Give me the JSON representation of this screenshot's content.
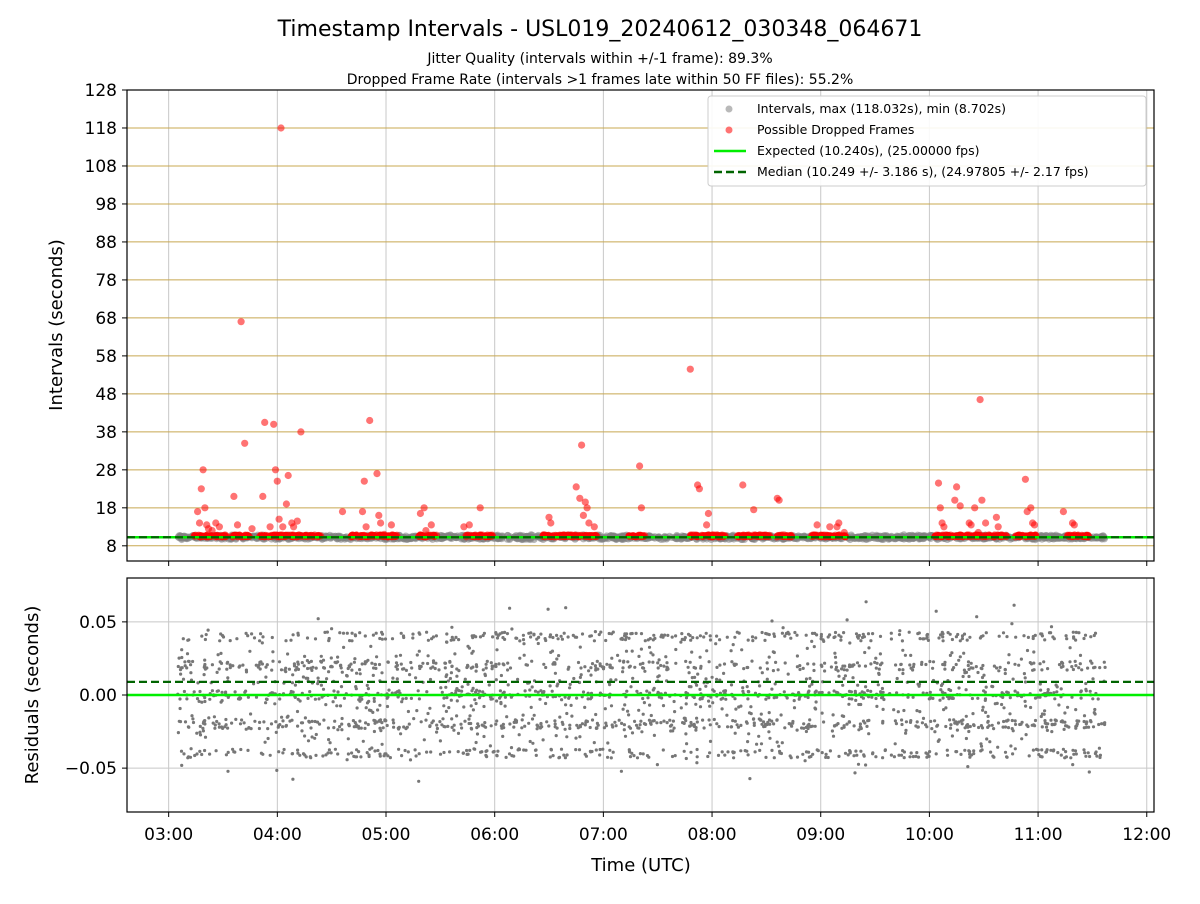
{
  "title": "Timestamp Intervals - USL019_20240612_030348_064671",
  "subtitle_1": "Jitter Quality (intervals within +/-1 frame): 89.3%",
  "subtitle_2": "Dropped Frame Rate (intervals >1 frames late within 50 FF files): 55.2%",
  "colors": {
    "intervals": "#808080",
    "dropped": "#ff0000",
    "expected": "#00ee00",
    "median": "#006400",
    "hgrid": "#c8a850",
    "vgrid": "#c8c8c8",
    "residuals": "#777777"
  },
  "chart_data": [
    {
      "type": "scatter",
      "panel": "top",
      "ylabel": "Intervals (seconds)",
      "xlabel": "",
      "ylim": [
        4,
        128
      ],
      "yticks": [
        8,
        18,
        28,
        38,
        48,
        58,
        68,
        78,
        88,
        98,
        108,
        118,
        128
      ],
      "xlim": [
        "02:37",
        "12:04"
      ],
      "xticks": [
        "03:00",
        "04:00",
        "05:00",
        "06:00",
        "07:00",
        "08:00",
        "09:00",
        "10:00",
        "11:00",
        "12:00"
      ],
      "grid": "on",
      "legend_position": "top-right",
      "legend": [
        "Intervals, max (118.032s), min (8.702s)",
        "Possible Dropped Frames",
        "Expected (10.240s), (25.00000 fps)",
        "Median (10.249 +/- 3.186 s), (24.97805 +/- 2.17 fps)"
      ],
      "expected_line": 10.24,
      "median_line": 10.249,
      "intervals_range": [
        "03:05",
        "11:37"
      ],
      "dropped_points": [
        [
          "03:16",
          17.0
        ],
        [
          "03:17",
          14.0
        ],
        [
          "03:18",
          23.0
        ],
        [
          "03:19",
          28.0
        ],
        [
          "03:20",
          18.0
        ],
        [
          "03:21",
          13.5
        ],
        [
          "03:22",
          12.5
        ],
        [
          "03:24",
          12.0
        ],
        [
          "03:26",
          14.0
        ],
        [
          "03:28",
          13.0
        ],
        [
          "03:36",
          21.0
        ],
        [
          "03:38",
          13.5
        ],
        [
          "03:40",
          67.0
        ],
        [
          "03:42",
          35.0
        ],
        [
          "03:46",
          12.5
        ],
        [
          "03:52",
          21.0
        ],
        [
          "03:53",
          40.5
        ],
        [
          "03:56",
          13.0
        ],
        [
          "03:58",
          40.0
        ],
        [
          "03:59",
          28.0
        ],
        [
          "04:00",
          25.0
        ],
        [
          "04:01",
          15.0
        ],
        [
          "04:02",
          118.0
        ],
        [
          "04:03",
          13.0
        ],
        [
          "04:05",
          19.0
        ],
        [
          "04:06",
          26.5
        ],
        [
          "04:08",
          14.0
        ],
        [
          "04:09",
          13.0
        ],
        [
          "04:11",
          14.5
        ],
        [
          "04:13",
          38.0
        ],
        [
          "04:36",
          17.0
        ],
        [
          "04:47",
          17.0
        ],
        [
          "04:48",
          25.0
        ],
        [
          "04:49",
          13.0
        ],
        [
          "04:51",
          41.0
        ],
        [
          "04:55",
          27.0
        ],
        [
          "04:56",
          16.0
        ],
        [
          "04:57",
          14.0
        ],
        [
          "04:59",
          11.0
        ],
        [
          "05:03",
          13.5
        ],
        [
          "05:19",
          16.5
        ],
        [
          "05:21",
          18.0
        ],
        [
          "05:22",
          12.0
        ],
        [
          "05:25",
          13.5
        ],
        [
          "05:43",
          13.0
        ],
        [
          "05:46",
          13.5
        ],
        [
          "05:52",
          18.0
        ],
        [
          "06:30",
          15.5
        ],
        [
          "06:31",
          14.0
        ],
        [
          "06:45",
          23.5
        ],
        [
          "06:47",
          20.5
        ],
        [
          "06:48",
          34.5
        ],
        [
          "06:49",
          16.0
        ],
        [
          "06:50",
          19.5
        ],
        [
          "06:51",
          18.0
        ],
        [
          "06:52",
          14.0
        ],
        [
          "06:55",
          13.0
        ],
        [
          "07:20",
          29.0
        ],
        [
          "07:21",
          18.0
        ],
        [
          "07:48",
          54.5
        ],
        [
          "07:52",
          24.0
        ],
        [
          "07:53",
          23.0
        ],
        [
          "07:57",
          13.5
        ],
        [
          "07:58",
          16.5
        ],
        [
          "08:17",
          24.0
        ],
        [
          "08:23",
          17.5
        ],
        [
          "08:36",
          20.5
        ],
        [
          "08:37",
          20.0
        ],
        [
          "08:58",
          13.5
        ],
        [
          "09:05",
          13.0
        ],
        [
          "09:09",
          13.0
        ],
        [
          "09:10",
          14.0
        ],
        [
          "09:13",
          11.5
        ],
        [
          "10:05",
          24.5
        ],
        [
          "10:06",
          18.0
        ],
        [
          "10:07",
          14.0
        ],
        [
          "10:08",
          13.0
        ],
        [
          "10:14",
          20.0
        ],
        [
          "10:15",
          23.5
        ],
        [
          "10:17",
          18.5
        ],
        [
          "10:22",
          14.0
        ],
        [
          "10:23",
          13.5
        ],
        [
          "10:25",
          18.0
        ],
        [
          "10:27",
          11.5
        ],
        [
          "10:28",
          46.5
        ],
        [
          "10:29",
          20.0
        ],
        [
          "10:31",
          14.0
        ],
        [
          "10:37",
          15.5
        ],
        [
          "10:38",
          13.0
        ],
        [
          "10:53",
          25.5
        ],
        [
          "10:54",
          17.0
        ],
        [
          "10:56",
          18.0
        ],
        [
          "10:57",
          14.0
        ],
        [
          "10:58",
          13.5
        ],
        [
          "11:14",
          17.0
        ],
        [
          "11:19",
          14.0
        ],
        [
          "11:20",
          13.5
        ]
      ],
      "dropped_clusters": [
        [
          "03:14",
          "03:32"
        ],
        [
          "03:35",
          "03:45"
        ],
        [
          "03:50",
          "04:24"
        ],
        [
          "04:40",
          "05:07"
        ],
        [
          "05:18",
          "05:28"
        ],
        [
          "05:44",
          "05:59"
        ],
        [
          "06:26",
          "06:57"
        ],
        [
          "07:14",
          "07:23"
        ],
        [
          "07:48",
          "08:08"
        ],
        [
          "08:14",
          "08:32"
        ],
        [
          "08:35",
          "08:44"
        ],
        [
          "08:55",
          "09:14"
        ],
        [
          "10:03",
          "10:43"
        ],
        [
          "10:46",
          "10:59"
        ],
        [
          "11:16",
          "11:28"
        ]
      ]
    },
    {
      "type": "scatter",
      "panel": "bottom",
      "ylabel": "Residuals (seconds)",
      "xlabel": "Time (UTC)",
      "ylim": [
        -0.08,
        0.08
      ],
      "yticks": [
        -0.05,
        0.0,
        0.05
      ],
      "ytick_labels": [
        "−0.05",
        "0.00",
        "0.05"
      ],
      "xlim": [
        "02:37",
        "12:04"
      ],
      "xticks": [
        "03:00",
        "04:00",
        "05:00",
        "06:00",
        "07:00",
        "08:00",
        "09:00",
        "10:00",
        "11:00",
        "12:00"
      ],
      "grid": "on",
      "expected_line": 0.0,
      "median_line": 0.009,
      "residuals_range": [
        "03:05",
        "11:37"
      ],
      "residual_spread": [
        -0.066,
        0.073
      ],
      "residual_levels": [
        -0.04,
        -0.02,
        0.0,
        0.02,
        0.04
      ]
    }
  ]
}
